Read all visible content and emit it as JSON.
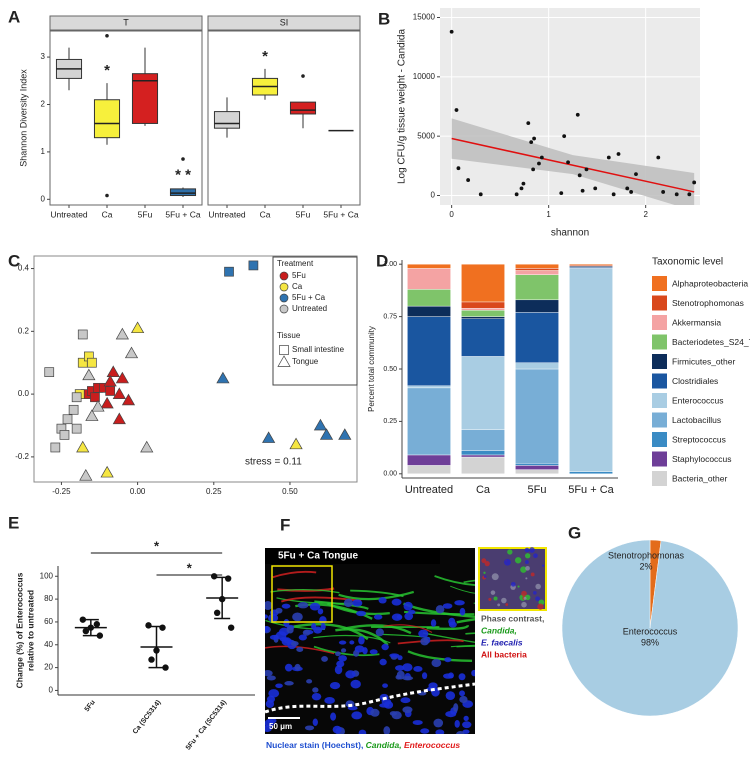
{
  "chart_data": [
    {
      "type": "box",
      "panel": "A",
      "ylabel": "Shannon Diversity Index",
      "categories": [
        "Untreated",
        "Ca",
        "5Fu",
        "5Fu + Ca"
      ],
      "colors": [
        "#d4d4d4",
        "#f7f03c",
        "#d42020",
        "#2f6fa8"
      ],
      "ylim": [
        -0.12,
        3.55
      ],
      "yticks": [
        0,
        1,
        2,
        3
      ],
      "facets": [
        {
          "name": "T",
          "boxes": [
            {
              "whislo": 2.3,
              "q1": 2.55,
              "med": 2.75,
              "q3": 2.95,
              "whishi": 3.2
            },
            {
              "whislo": 1.15,
              "q1": 1.3,
              "med": 1.6,
              "q3": 2.1,
              "whishi": 2.45,
              "fliers": [
                3.45,
                0.08
              ]
            },
            {
              "whislo": 1.55,
              "q1": 1.6,
              "med": 2.5,
              "q3": 2.65,
              "whishi": 3.2
            },
            {
              "whislo": 0.05,
              "q1": 0.08,
              "med": 0.13,
              "q3": 0.22,
              "whishi": 0.25,
              "fliers": [
                0.85
              ]
            }
          ],
          "annotations": [
            {
              "category": 1,
              "text": "*"
            },
            {
              "category": 3,
              "text": "* *"
            }
          ]
        },
        {
          "name": "SI",
          "boxes": [
            {
              "whislo": 1.3,
              "q1": 1.5,
              "med": 1.6,
              "q3": 1.85,
              "whishi": 2.15
            },
            {
              "whislo": 2.1,
              "q1": 2.2,
              "med": 2.38,
              "q3": 2.55,
              "whishi": 2.75
            },
            {
              "whislo": 1.5,
              "q1": 1.8,
              "med": 1.88,
              "q3": 2.05,
              "whishi": 2.05,
              "fliers": [
                2.6
              ]
            },
            {
              "med": 1.45
            }
          ],
          "annotations": [
            {
              "category": 1,
              "text": "*"
            }
          ]
        }
      ]
    },
    {
      "type": "scatter",
      "panel": "B",
      "xlabel": "shannon",
      "ylabel": "Log CFU/g tissue weight - Candida",
      "x": [
        0,
        0.05,
        0.07,
        0.17,
        0.3,
        0.67,
        0.72,
        0.74,
        0.79,
        0.82,
        0.85,
        0.9,
        0.93,
        0.84,
        1.13,
        1.16,
        1.2,
        1.3,
        1.32,
        1.35,
        1.39,
        1.48,
        1.62,
        1.67,
        1.72,
        1.81,
        1.85,
        1.9,
        2.13,
        2.18,
        2.32,
        2.45,
        2.5
      ],
      "y": [
        13800,
        7200,
        2300,
        1300,
        100,
        100,
        600,
        1000,
        6100,
        4500,
        4800,
        2700,
        3200,
        2200,
        200,
        5000,
        2800,
        6800,
        1700,
        400,
        2200,
        600,
        3200,
        100,
        3500,
        600,
        300,
        1800,
        3200,
        300,
        100,
        100,
        1100
      ],
      "color": "#111111",
      "fit": {
        "x": [
          0,
          2.5
        ],
        "values": [
          4800,
          300
        ],
        "color": "#e01010"
      },
      "band": {
        "x": [
          0,
          1.25,
          2.5
        ],
        "lower": [
          3100,
          1800,
          -1300
        ],
        "upper": [
          6500,
          3400,
          1900
        ],
        "color": "#bdbdbd"
      },
      "xlim": [
        -0.12,
        2.56
      ],
      "xticks": [
        0,
        1,
        2
      ],
      "ylim": [
        -800,
        15800
      ],
      "yticks": [
        0,
        5000,
        10000,
        15000
      ],
      "grid": true
    },
    {
      "type": "scatter",
      "panel": "C",
      "annotation": "stress =  0.11",
      "legend_title": "Treatment",
      "tissue_title": "Tissue",
      "tissue_legend": [
        {
          "name": "Small intestine",
          "marker": "square"
        },
        {
          "name": "Tongue",
          "marker": "triangle"
        }
      ],
      "series": [
        {
          "name": "5Fu",
          "color": "#c81e1e",
          "x": [
            -0.17,
            -0.15,
            -0.13,
            -0.11,
            -0.09,
            -0.14,
            -0.08,
            -0.05,
            -0.09,
            -0.06,
            -0.03,
            -0.1,
            -0.06
          ],
          "y": [
            0.0,
            0.01,
            0.02,
            0.02,
            0.01,
            -0.01,
            0.07,
            0.05,
            0.04,
            0.0,
            -0.02,
            -0.03,
            -0.08
          ],
          "marker": [
            "square",
            "square",
            "square",
            "square",
            "square",
            "square",
            "triangle",
            "triangle",
            "triangle",
            "triangle",
            "triangle",
            "triangle",
            "triangle"
          ]
        },
        {
          "name": "Ca",
          "color": "#f5e642",
          "x": [
            -0.18,
            -0.16,
            -0.15,
            -0.19,
            0.0,
            -0.18,
            -0.1,
            0.52
          ],
          "y": [
            0.1,
            0.12,
            0.1,
            0.0,
            0.21,
            -0.17,
            -0.25,
            -0.16
          ],
          "marker": [
            "square",
            "square",
            "square",
            "square",
            "triangle",
            "triangle",
            "triangle",
            "triangle"
          ]
        },
        {
          "name": "5Fu + Ca",
          "color": "#2f73b0",
          "x": [
            0.3,
            0.38,
            0.28,
            0.43,
            0.6,
            0.62,
            0.68
          ],
          "y": [
            0.39,
            0.41,
            0.05,
            -0.14,
            -0.1,
            -0.13,
            -0.13
          ],
          "marker": [
            "square",
            "square",
            "triangle",
            "triangle",
            "triangle",
            "triangle",
            "triangle"
          ]
        },
        {
          "name": "Untreated",
          "color": "#c8c8c8",
          "x": [
            -0.29,
            -0.18,
            -0.2,
            -0.21,
            -0.23,
            -0.25,
            -0.24,
            -0.27,
            -0.2,
            -0.05,
            -0.02,
            -0.16,
            -0.13,
            -0.15,
            0.03,
            -0.17
          ],
          "y": [
            0.07,
            0.19,
            -0.01,
            -0.05,
            -0.08,
            -0.11,
            -0.13,
            -0.17,
            -0.11,
            0.19,
            0.13,
            0.06,
            -0.04,
            -0.07,
            -0.17,
            -0.26
          ],
          "marker": [
            "square",
            "square",
            "square",
            "square",
            "square",
            "square",
            "square",
            "square",
            "square",
            "triangle",
            "triangle",
            "triangle",
            "triangle",
            "triangle",
            "triangle",
            "triangle"
          ]
        }
      ],
      "xlim": [
        -0.34,
        0.72
      ],
      "xticks": [
        {
          "value": -0.25,
          "label": "-0.25"
        },
        {
          "value": 0,
          "label": "0.00"
        },
        {
          "value": 0.25,
          "label": "0.25"
        },
        {
          "value": 0.5,
          "label": "0.50"
        }
      ],
      "ylim": [
        -0.28,
        0.44
      ],
      "yticks": [
        {
          "value": -0.2,
          "label": "-0.2"
        },
        {
          "value": 0,
          "label": "0.0"
        },
        0.2,
        0.4
      ]
    },
    {
      "type": "bar",
      "panel": "D",
      "stacked": true,
      "ylabel": "Percent total community",
      "legend_title": "Taxonomic level",
      "categories": [
        "Untreated",
        "Ca",
        "5Fu",
        "5Fu + Ca"
      ],
      "series": [
        {
          "name": "Alphaproteobacteria",
          "color": "#f07020",
          "values": [
            0.02,
            0.18,
            0.02,
            0.005
          ]
        },
        {
          "name": "Stenotrophomonas",
          "color": "#d9481c",
          "values": [
            0,
            0.03,
            0.01,
            0.005
          ]
        },
        {
          "name": "Akkermansia",
          "color": "#f4a3a3",
          "values": [
            0.1,
            0.01,
            0.02,
            0
          ]
        },
        {
          "name": "Bacteriodetes_S24_7",
          "color": "#7fc46a",
          "values": [
            0.08,
            0.03,
            0.12,
            0
          ]
        },
        {
          "name": "Firmicutes_other",
          "color": "#0d2d5a",
          "values": [
            0.05,
            0.01,
            0.06,
            0.005
          ]
        },
        {
          "name": "Clostridiales",
          "color": "#1a56a0",
          "values": [
            0.33,
            0.18,
            0.24,
            0.005
          ]
        },
        {
          "name": "Enterococcus",
          "color": "#a9cde3",
          "values": [
            0.01,
            0.35,
            0.03,
            0.97
          ]
        },
        {
          "name": "Lactobacillus",
          "color": "#78aed6",
          "values": [
            0.32,
            0.1,
            0.45,
            0
          ]
        },
        {
          "name": "Streptococcus",
          "color": "#3a8bc4",
          "values": [
            0,
            0.02,
            0.01,
            0.01
          ]
        },
        {
          "name": "Staphylococcus",
          "color": "#6e3e98",
          "values": [
            0.05,
            0.01,
            0.02,
            0
          ]
        },
        {
          "name": "Bacteria_other",
          "color": "#d3d3d3",
          "values": [
            0.04,
            0.08,
            0.02,
            0
          ]
        }
      ],
      "ylim": [
        -0.02,
        1.02
      ],
      "yticks": [
        {
          "value": 0,
          "label": "0.00"
        },
        {
          "value": 0.25,
          "label": "0.25"
        },
        {
          "value": 0.5,
          "label": "0.50"
        },
        {
          "value": 0.75,
          "label": "0.75"
        },
        {
          "value": 1,
          "label": "1.00"
        }
      ]
    },
    {
      "type": "dot",
      "panel": "E",
      "ylabel": [
        "Change (%) of Enterococcus",
        "relative to untreated"
      ],
      "categories": [
        "5Fu",
        "Ca (SC5314)",
        "5Fu + Ca (SC5314)"
      ],
      "points": [
        [
          62,
          58,
          55,
          52,
          48
        ],
        [
          57,
          55,
          35,
          27,
          20
        ],
        [
          100,
          98,
          80,
          68,
          55
        ]
      ],
      "means": [
        55,
        38,
        81
      ],
      "sd": [
        7,
        18,
        18
      ],
      "brackets": [
        {
          "from": 0,
          "to": 2,
          "text": "*"
        },
        {
          "from": 1,
          "to": 2,
          "text": "*"
        }
      ],
      "ylim": [
        -4,
        109
      ],
      "yticks": [
        0,
        20,
        40,
        60,
        80,
        100
      ]
    },
    {
      "type": "pie",
      "panel": "G",
      "categories": [
        "Stenotrophomonas",
        "Enterococcus"
      ],
      "values": [
        2,
        98
      ],
      "value_labels": [
        "2%",
        "98%"
      ],
      "colors": [
        "#e36c1b",
        "#a8cde3"
      ]
    }
  ],
  "image_panel": {
    "panel": "F",
    "title": "5Fu + Ca Tongue",
    "scale_bar": "50 μm",
    "caption": [
      "Nuclear stain (Hoechst), ",
      "Candida, ",
      "Enterococcus"
    ],
    "inset_caption": [
      "Phase contrast,",
      "Candida,",
      "E. faecalis",
      "All bacteria"
    ]
  }
}
